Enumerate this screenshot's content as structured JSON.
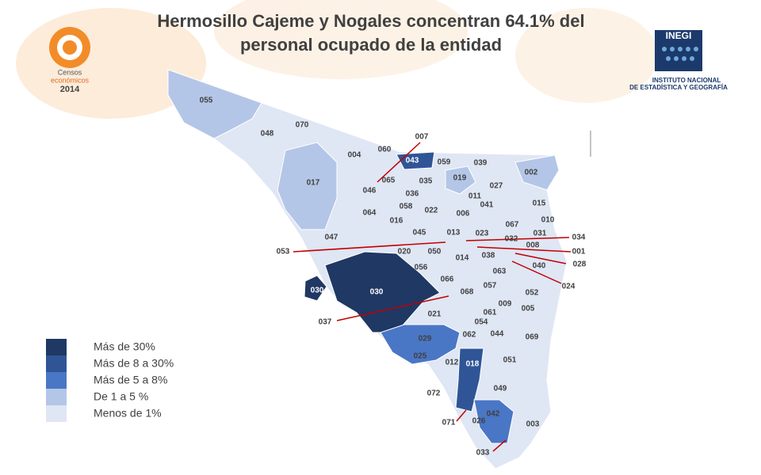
{
  "header": {
    "title_lines": [
      "Hermosillo  Cajeme y Nogales concentran 64.1% del",
      "personal ocupado de la entidad"
    ]
  },
  "logos": {
    "censos": [
      "Censos",
      "económicos",
      "2014"
    ],
    "inegi": [
      "INEGI",
      "INSTITUTO NACIONAL",
      "DE ESTADÍSTICA Y GEOGRAFÍA"
    ]
  },
  "legend": {
    "items": [
      {
        "label": "Más de 30%",
        "color": "#1f3864"
      },
      {
        "label": "Más de 8 a 30%",
        "color": "#2f5597"
      },
      {
        "label": "Más de 5 a 8%",
        "color": "#4a76c6"
      },
      {
        "label": "De 1 a 5 %",
        "color": "#b4c6e7"
      },
      {
        "label": "Menos de 1%",
        "color": "#dfe6f4"
      }
    ]
  },
  "map": {
    "labels": [
      "055",
      "070",
      "048",
      "007",
      "060",
      "004",
      "043",
      "059",
      "039",
      "002",
      "017",
      "065",
      "035",
      "019",
      "027",
      "046",
      "036",
      "011",
      "041",
      "015",
      "058",
      "022",
      "064",
      "006",
      "016",
      "067",
      "010",
      "045",
      "013",
      "023",
      "031",
      "034",
      "047",
      "032",
      "008",
      "001",
      "053",
      "020",
      "050",
      "038",
      "014",
      "028",
      "040",
      "056",
      "063",
      "066",
      "057",
      "024",
      "030",
      "030",
      "068",
      "052",
      "009",
      "005",
      "061",
      "021",
      "037",
      "054",
      "062",
      "044",
      "069",
      "029",
      "025",
      "012",
      "018",
      "051",
      "049",
      "072",
      "042",
      "071",
      "026",
      "003",
      "033"
    ]
  }
}
